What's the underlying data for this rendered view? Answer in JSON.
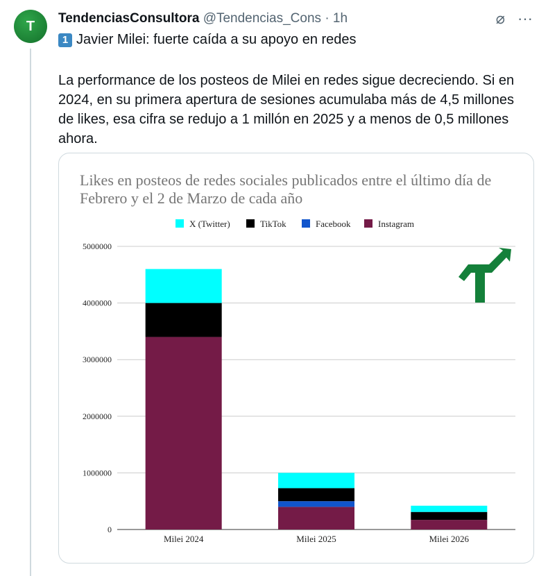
{
  "tweet": {
    "avatar_text": "T",
    "name": "TendenciasConsultora",
    "handle": "@Tendencias_Cons",
    "time": "1h",
    "title_badge": "1",
    "title": "Javier Milei: fuerte caída a su apoyo en redes",
    "body": "La performance de los posteos de Milei en redes sigue decreciendo. Si en 2024, en su primera apertura de sesiones acumulaba más de 4,5 millones de likes, esa cifra se redujo a 1 millón en 2025 y a menos de 0,5 millones ahora.",
    "more_icon": "more-icon",
    "grok_icon": "grok-icon"
  },
  "chart_data": {
    "type": "bar",
    "stacked": true,
    "title": "Likes en posteos de redes sociales publicados entre el último día de Febrero y el 2 de Marzo de cada año",
    "categories": [
      "Milei 2024",
      "Milei 2025",
      "Milei 2026"
    ],
    "series": [
      {
        "name": "Instagram",
        "color": "#741b47",
        "values": [
          3400000,
          400000,
          170000
        ]
      },
      {
        "name": "Facebook",
        "color": "#1155cc",
        "values": [
          0,
          100000,
          0
        ]
      },
      {
        "name": "TikTok",
        "color": "#000000",
        "values": [
          600000,
          230000,
          140000
        ]
      },
      {
        "name": "X (Twitter)",
        "color": "#00ffff",
        "values": [
          600000,
          270000,
          110000
        ]
      }
    ],
    "legend_order": [
      "X (Twitter)",
      "TikTok",
      "Facebook",
      "Instagram"
    ],
    "legend_position": "top",
    "ylim": [
      0,
      5000000
    ],
    "yticks": [
      "0",
      "1000000",
      "2000000",
      "3000000",
      "4000000",
      "5000000"
    ],
    "grid": true
  }
}
